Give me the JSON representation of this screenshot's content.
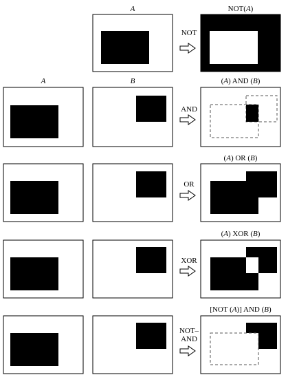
{
  "figure": {
    "headers": {
      "a_top": "A",
      "a_left": "A",
      "b_left": "B"
    },
    "rows": [
      {
        "operator": "NOT",
        "operator_line2": "",
        "result_title": "NOT(A)",
        "result_title_parts": [
          "NOT(",
          "A",
          ")"
        ]
      },
      {
        "operator": "AND",
        "operator_line2": "",
        "result_title": "(A) AND (B)",
        "result_title_parts": [
          "(",
          "A",
          ") AND (",
          "B",
          ")"
        ]
      },
      {
        "operator": "OR",
        "operator_line2": "",
        "result_title": "(A) OR (B)",
        "result_title_parts": [
          "(",
          "A",
          ") OR (",
          "B",
          ")"
        ]
      },
      {
        "operator": "XOR",
        "operator_line2": "",
        "result_title": "(A) XOR (B)",
        "result_title_parts": [
          "(",
          "A",
          ") XOR (",
          "B",
          ")"
        ]
      },
      {
        "operator": "NOT–",
        "operator_line2": "AND",
        "result_title": "[NOT (A)] AND (B)",
        "result_title_parts": [
          "[NOT (",
          "A",
          ")] AND (",
          "B",
          ")"
        ]
      }
    ],
    "colors": {
      "ink": "#000000",
      "paper": "#ffffff",
      "dashed_outline": "#555555"
    }
  }
}
